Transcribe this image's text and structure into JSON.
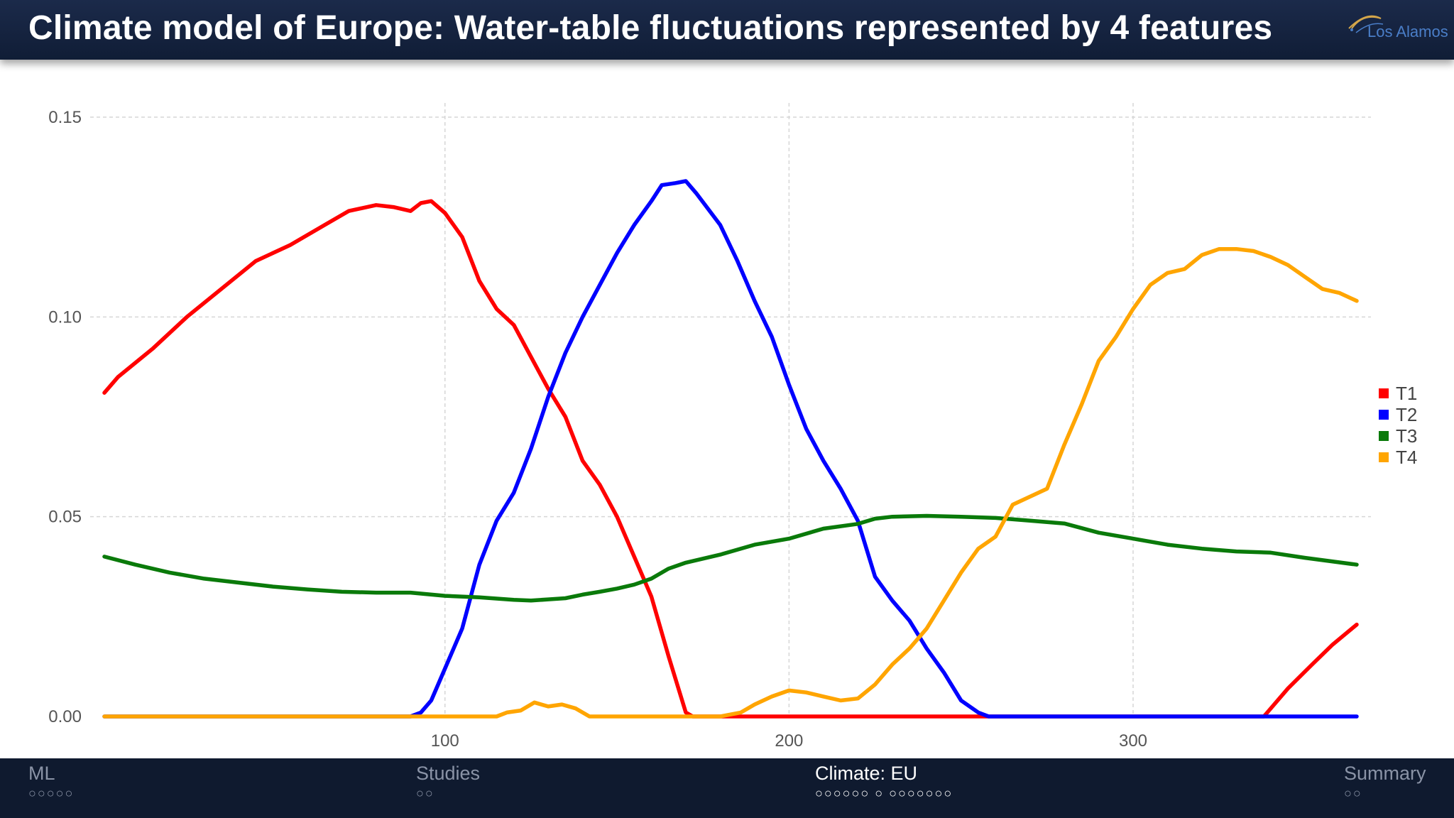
{
  "header": {
    "title": "Climate model of Europe: Water-table fluctuations represented by 4 features",
    "logo_text": "Los Alamos"
  },
  "footer": {
    "sections": [
      {
        "label": "ML",
        "dots": "○○○○○",
        "active": false
      },
      {
        "label": "Studies",
        "dots": "○○",
        "active": false
      },
      {
        "label": "Climate: EU",
        "dots": "○○○○○○  ○  ○○○○○○○",
        "active": true
      },
      {
        "label": "Summary",
        "dots": "○○",
        "active": false
      }
    ]
  },
  "chart_data": {
    "type": "line",
    "title": "",
    "xlabel": "",
    "ylabel": "",
    "xlim": [
      1,
      365
    ],
    "ylim": [
      0,
      0.15
    ],
    "x_ticks": [
      100,
      200,
      300
    ],
    "x_tick_labels": [
      "100",
      "200",
      "300"
    ],
    "y_ticks": [
      0,
      0.05,
      0.1,
      0.15
    ],
    "y_tick_labels": [
      "0.00",
      "0.05",
      "0.10",
      "0.15"
    ],
    "grid": true,
    "legend_position": "right",
    "series": [
      {
        "name": "T1",
        "color": "#ff0000",
        "points": [
          [
            1,
            0.081
          ],
          [
            5,
            0.085
          ],
          [
            15,
            0.092
          ],
          [
            25,
            0.1
          ],
          [
            35,
            0.107
          ],
          [
            45,
            0.114
          ],
          [
            55,
            0.118
          ],
          [
            65,
            0.123
          ],
          [
            72,
            0.1265
          ],
          [
            80,
            0.128
          ],
          [
            85,
            0.1275
          ],
          [
            90,
            0.1265
          ],
          [
            93,
            0.1285
          ],
          [
            96,
            0.129
          ],
          [
            100,
            0.126
          ],
          [
            105,
            0.12
          ],
          [
            110,
            0.109
          ],
          [
            115,
            0.102
          ],
          [
            120,
            0.098
          ],
          [
            125,
            0.09
          ],
          [
            130,
            0.082
          ],
          [
            135,
            0.075
          ],
          [
            140,
            0.064
          ],
          [
            145,
            0.058
          ],
          [
            150,
            0.05
          ],
          [
            155,
            0.04
          ],
          [
            160,
            0.03
          ],
          [
            165,
            0.015
          ],
          [
            170,
            0.001
          ],
          [
            172,
            0
          ],
          [
            200,
            0
          ],
          [
            250,
            0
          ],
          [
            300,
            0
          ],
          [
            338,
            0
          ],
          [
            345,
            0.007
          ],
          [
            352,
            0.013
          ],
          [
            358,
            0.018
          ],
          [
            365,
            0.023
          ]
        ]
      },
      {
        "name": "T2",
        "color": "#0000ff",
        "points": [
          [
            1,
            0
          ],
          [
            50,
            0
          ],
          [
            90,
            0
          ],
          [
            93,
            0.001
          ],
          [
            96,
            0.004
          ],
          [
            100,
            0.012
          ],
          [
            105,
            0.022
          ],
          [
            110,
            0.038
          ],
          [
            115,
            0.049
          ],
          [
            120,
            0.056
          ],
          [
            125,
            0.067
          ],
          [
            130,
            0.08
          ],
          [
            135,
            0.091
          ],
          [
            140,
            0.1
          ],
          [
            145,
            0.108
          ],
          [
            150,
            0.116
          ],
          [
            155,
            0.123
          ],
          [
            160,
            0.129
          ],
          [
            163,
            0.133
          ],
          [
            167,
            0.1335
          ],
          [
            170,
            0.134
          ],
          [
            173,
            0.131
          ],
          [
            180,
            0.123
          ],
          [
            185,
            0.114
          ],
          [
            190,
            0.104
          ],
          [
            195,
            0.095
          ],
          [
            200,
            0.083
          ],
          [
            205,
            0.072
          ],
          [
            210,
            0.064
          ],
          [
            215,
            0.057
          ],
          [
            220,
            0.049
          ],
          [
            225,
            0.035
          ],
          [
            230,
            0.029
          ],
          [
            235,
            0.024
          ],
          [
            240,
            0.017
          ],
          [
            245,
            0.011
          ],
          [
            250,
            0.004
          ],
          [
            255,
            0.001
          ],
          [
            258,
            0
          ],
          [
            300,
            0
          ],
          [
            365,
            0
          ]
        ]
      },
      {
        "name": "T3",
        "color": "#0a7a0a",
        "points": [
          [
            1,
            0.04
          ],
          [
            10,
            0.038
          ],
          [
            20,
            0.036
          ],
          [
            30,
            0.0345
          ],
          [
            40,
            0.0335
          ],
          [
            50,
            0.0325
          ],
          [
            60,
            0.0318
          ],
          [
            70,
            0.0312
          ],
          [
            80,
            0.031
          ],
          [
            90,
            0.031
          ],
          [
            100,
            0.0302
          ],
          [
            110,
            0.0298
          ],
          [
            115,
            0.0295
          ],
          [
            120,
            0.0292
          ],
          [
            125,
            0.029
          ],
          [
            130,
            0.0293
          ],
          [
            135,
            0.0296
          ],
          [
            140,
            0.0305
          ],
          [
            145,
            0.0312
          ],
          [
            150,
            0.032
          ],
          [
            155,
            0.033
          ],
          [
            160,
            0.0345
          ],
          [
            165,
            0.037
          ],
          [
            170,
            0.0385
          ],
          [
            180,
            0.0405
          ],
          [
            190,
            0.043
          ],
          [
            200,
            0.0445
          ],
          [
            210,
            0.047
          ],
          [
            220,
            0.0482
          ],
          [
            225,
            0.0495
          ],
          [
            230,
            0.05
          ],
          [
            240,
            0.0502
          ],
          [
            250,
            0.05
          ],
          [
            260,
            0.0497
          ],
          [
            270,
            0.049
          ],
          [
            280,
            0.0483
          ],
          [
            290,
            0.046
          ],
          [
            300,
            0.0445
          ],
          [
            310,
            0.043
          ],
          [
            320,
            0.042
          ],
          [
            330,
            0.0413
          ],
          [
            340,
            0.041
          ],
          [
            350,
            0.0397
          ],
          [
            365,
            0.038
          ]
        ]
      },
      {
        "name": "T4",
        "color": "#ffa500",
        "points": [
          [
            1,
            0
          ],
          [
            50,
            0
          ],
          [
            95,
            0
          ],
          [
            110,
            0
          ],
          [
            115,
            0
          ],
          [
            118,
            0.001
          ],
          [
            122,
            0.0015
          ],
          [
            126,
            0.0035
          ],
          [
            130,
            0.0025
          ],
          [
            134,
            0.003
          ],
          [
            138,
            0.002
          ],
          [
            142,
            0
          ],
          [
            150,
            0
          ],
          [
            180,
            0
          ],
          [
            186,
            0.001
          ],
          [
            190,
            0.003
          ],
          [
            195,
            0.005
          ],
          [
            200,
            0.0065
          ],
          [
            205,
            0.006
          ],
          [
            210,
            0.005
          ],
          [
            215,
            0.004
          ],
          [
            220,
            0.0045
          ],
          [
            225,
            0.008
          ],
          [
            230,
            0.013
          ],
          [
            235,
            0.017
          ],
          [
            240,
            0.022
          ],
          [
            245,
            0.029
          ],
          [
            250,
            0.036
          ],
          [
            255,
            0.042
          ],
          [
            260,
            0.045
          ],
          [
            265,
            0.053
          ],
          [
            270,
            0.055
          ],
          [
            275,
            0.057
          ],
          [
            280,
            0.068
          ],
          [
            285,
            0.078
          ],
          [
            290,
            0.089
          ],
          [
            295,
            0.095
          ],
          [
            300,
            0.102
          ],
          [
            305,
            0.108
          ],
          [
            310,
            0.111
          ],
          [
            315,
            0.112
          ],
          [
            320,
            0.1155
          ],
          [
            325,
            0.117
          ],
          [
            330,
            0.117
          ],
          [
            335,
            0.1165
          ],
          [
            340,
            0.115
          ],
          [
            345,
            0.113
          ],
          [
            350,
            0.11
          ],
          [
            355,
            0.107
          ],
          [
            360,
            0.106
          ],
          [
            365,
            0.104
          ]
        ]
      }
    ]
  }
}
